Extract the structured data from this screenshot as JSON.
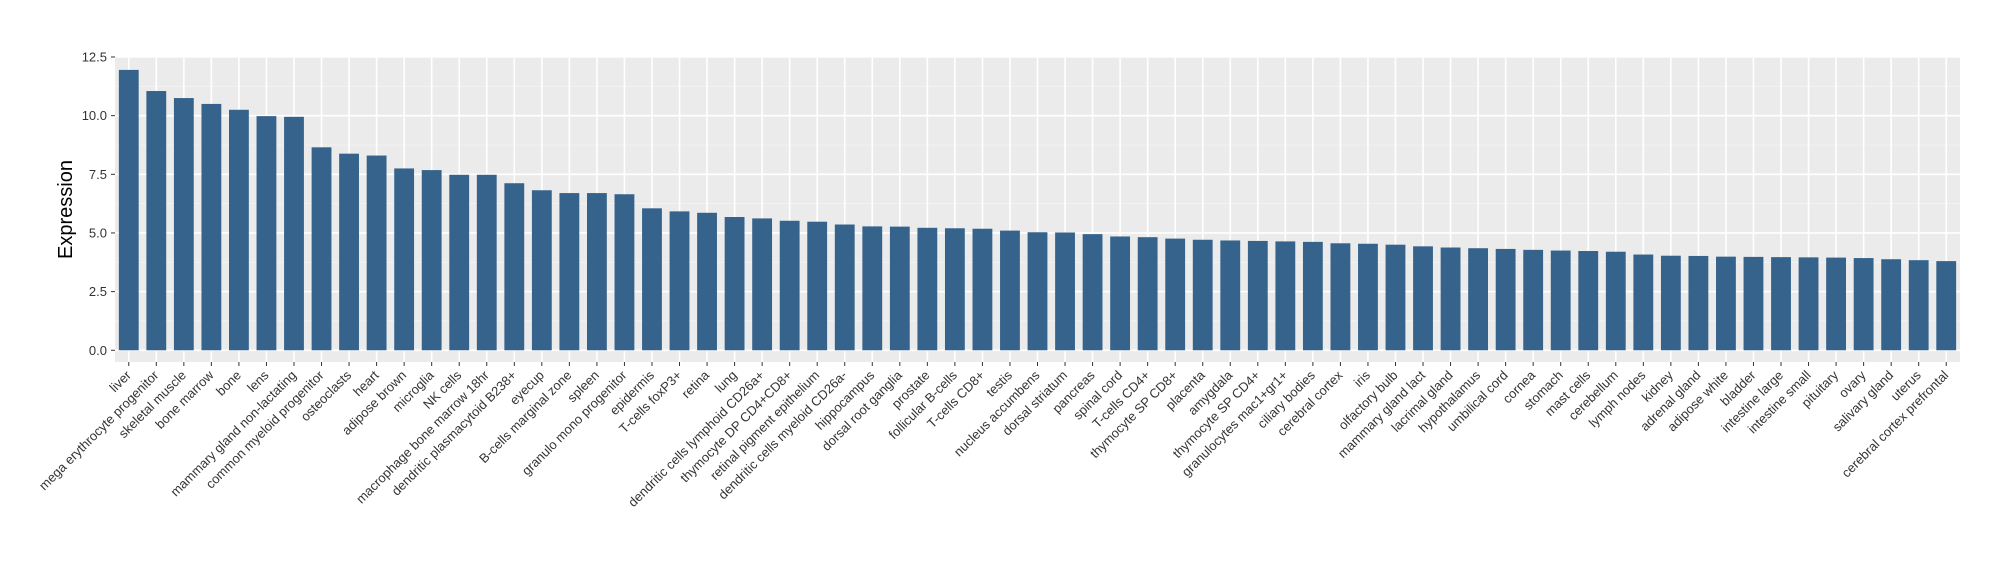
{
  "chart_data": {
    "type": "bar",
    "title": "",
    "xlabel": "",
    "ylabel": "Expression",
    "ylim": [
      -0.5,
      12.5
    ],
    "yticks": [
      0.0,
      2.5,
      5.0,
      7.5,
      10.0,
      12.5
    ],
    "ytick_labels": [
      "0.0",
      "2.5",
      "5.0",
      "7.5",
      "10.0",
      "12.5"
    ],
    "grid": true,
    "legend": "none",
    "colors": {
      "bar": "#35638c",
      "panel": "#ebebeb",
      "grid_major": "#ffffff",
      "grid_minor": "#f5f5f5"
    },
    "categories": [
      "liver",
      "mega erythrocyte progenitor",
      "skeletal muscle",
      "bone marrow",
      "bone",
      "lens",
      "mammary gland non-lactating",
      "common myeloid progenitor",
      "osteoclasts",
      "heart",
      "adipose brown",
      "microglia",
      "NK cells",
      "macrophage bone marrow 18hr",
      "dendritic plasmacytoid B238+",
      "eyecup",
      "B-cells marginal zone",
      "spleen",
      "granulo mono progenitor",
      "epidermis",
      "T-cells foxP3+",
      "retina",
      "lung",
      "dendritic cells lymphoid CD26a+",
      "thymocyte DP CD4+CD8+",
      "retinal pigment epithelium",
      "dendritic cells myeloid CD26a-",
      "hippocampus",
      "dorsal root ganglia",
      "prostate",
      "follicular B-cells",
      "T-cells CD8+",
      "testis",
      "nucleus accumbens",
      "dorsal striatum",
      "pancreas",
      "spinal cord",
      "T-cells CD4+",
      "thymocyte SP CD8+",
      "placenta",
      "amygdala",
      "thymocyte SP CD4+",
      "granulocytes mac1+gr1+",
      "ciliary bodies",
      "cerebral cortex",
      "iris",
      "olfactory bulb",
      "mammary gland lact",
      "lacrimal gland",
      "hypothalamus",
      "umbilical cord",
      "cornea",
      "stomach",
      "mast cells",
      "cerebellum",
      "lymph nodes",
      "kidney",
      "adrenal gland",
      "adipose white",
      "bladder",
      "intestine large",
      "intestine small",
      "pituitary",
      "ovary",
      "salivary gland",
      "uterus",
      "cerebral cortex prefrontal"
    ],
    "values": [
      11.95,
      11.05,
      10.75,
      10.5,
      10.25,
      9.98,
      9.95,
      8.65,
      8.38,
      8.3,
      7.75,
      7.68,
      7.48,
      7.48,
      7.12,
      6.82,
      6.7,
      6.7,
      6.65,
      6.05,
      5.92,
      5.86,
      5.68,
      5.62,
      5.52,
      5.48,
      5.36,
      5.28,
      5.27,
      5.22,
      5.2,
      5.18,
      5.1,
      5.03,
      5.02,
      4.95,
      4.85,
      4.82,
      4.76,
      4.71,
      4.68,
      4.66,
      4.64,
      4.62,
      4.56,
      4.54,
      4.5,
      4.43,
      4.38,
      4.35,
      4.32,
      4.28,
      4.25,
      4.23,
      4.2,
      4.08,
      4.03,
      4.02,
      3.99,
      3.98,
      3.97,
      3.96,
      3.95,
      3.93,
      3.88,
      3.84,
      3.8
    ]
  }
}
